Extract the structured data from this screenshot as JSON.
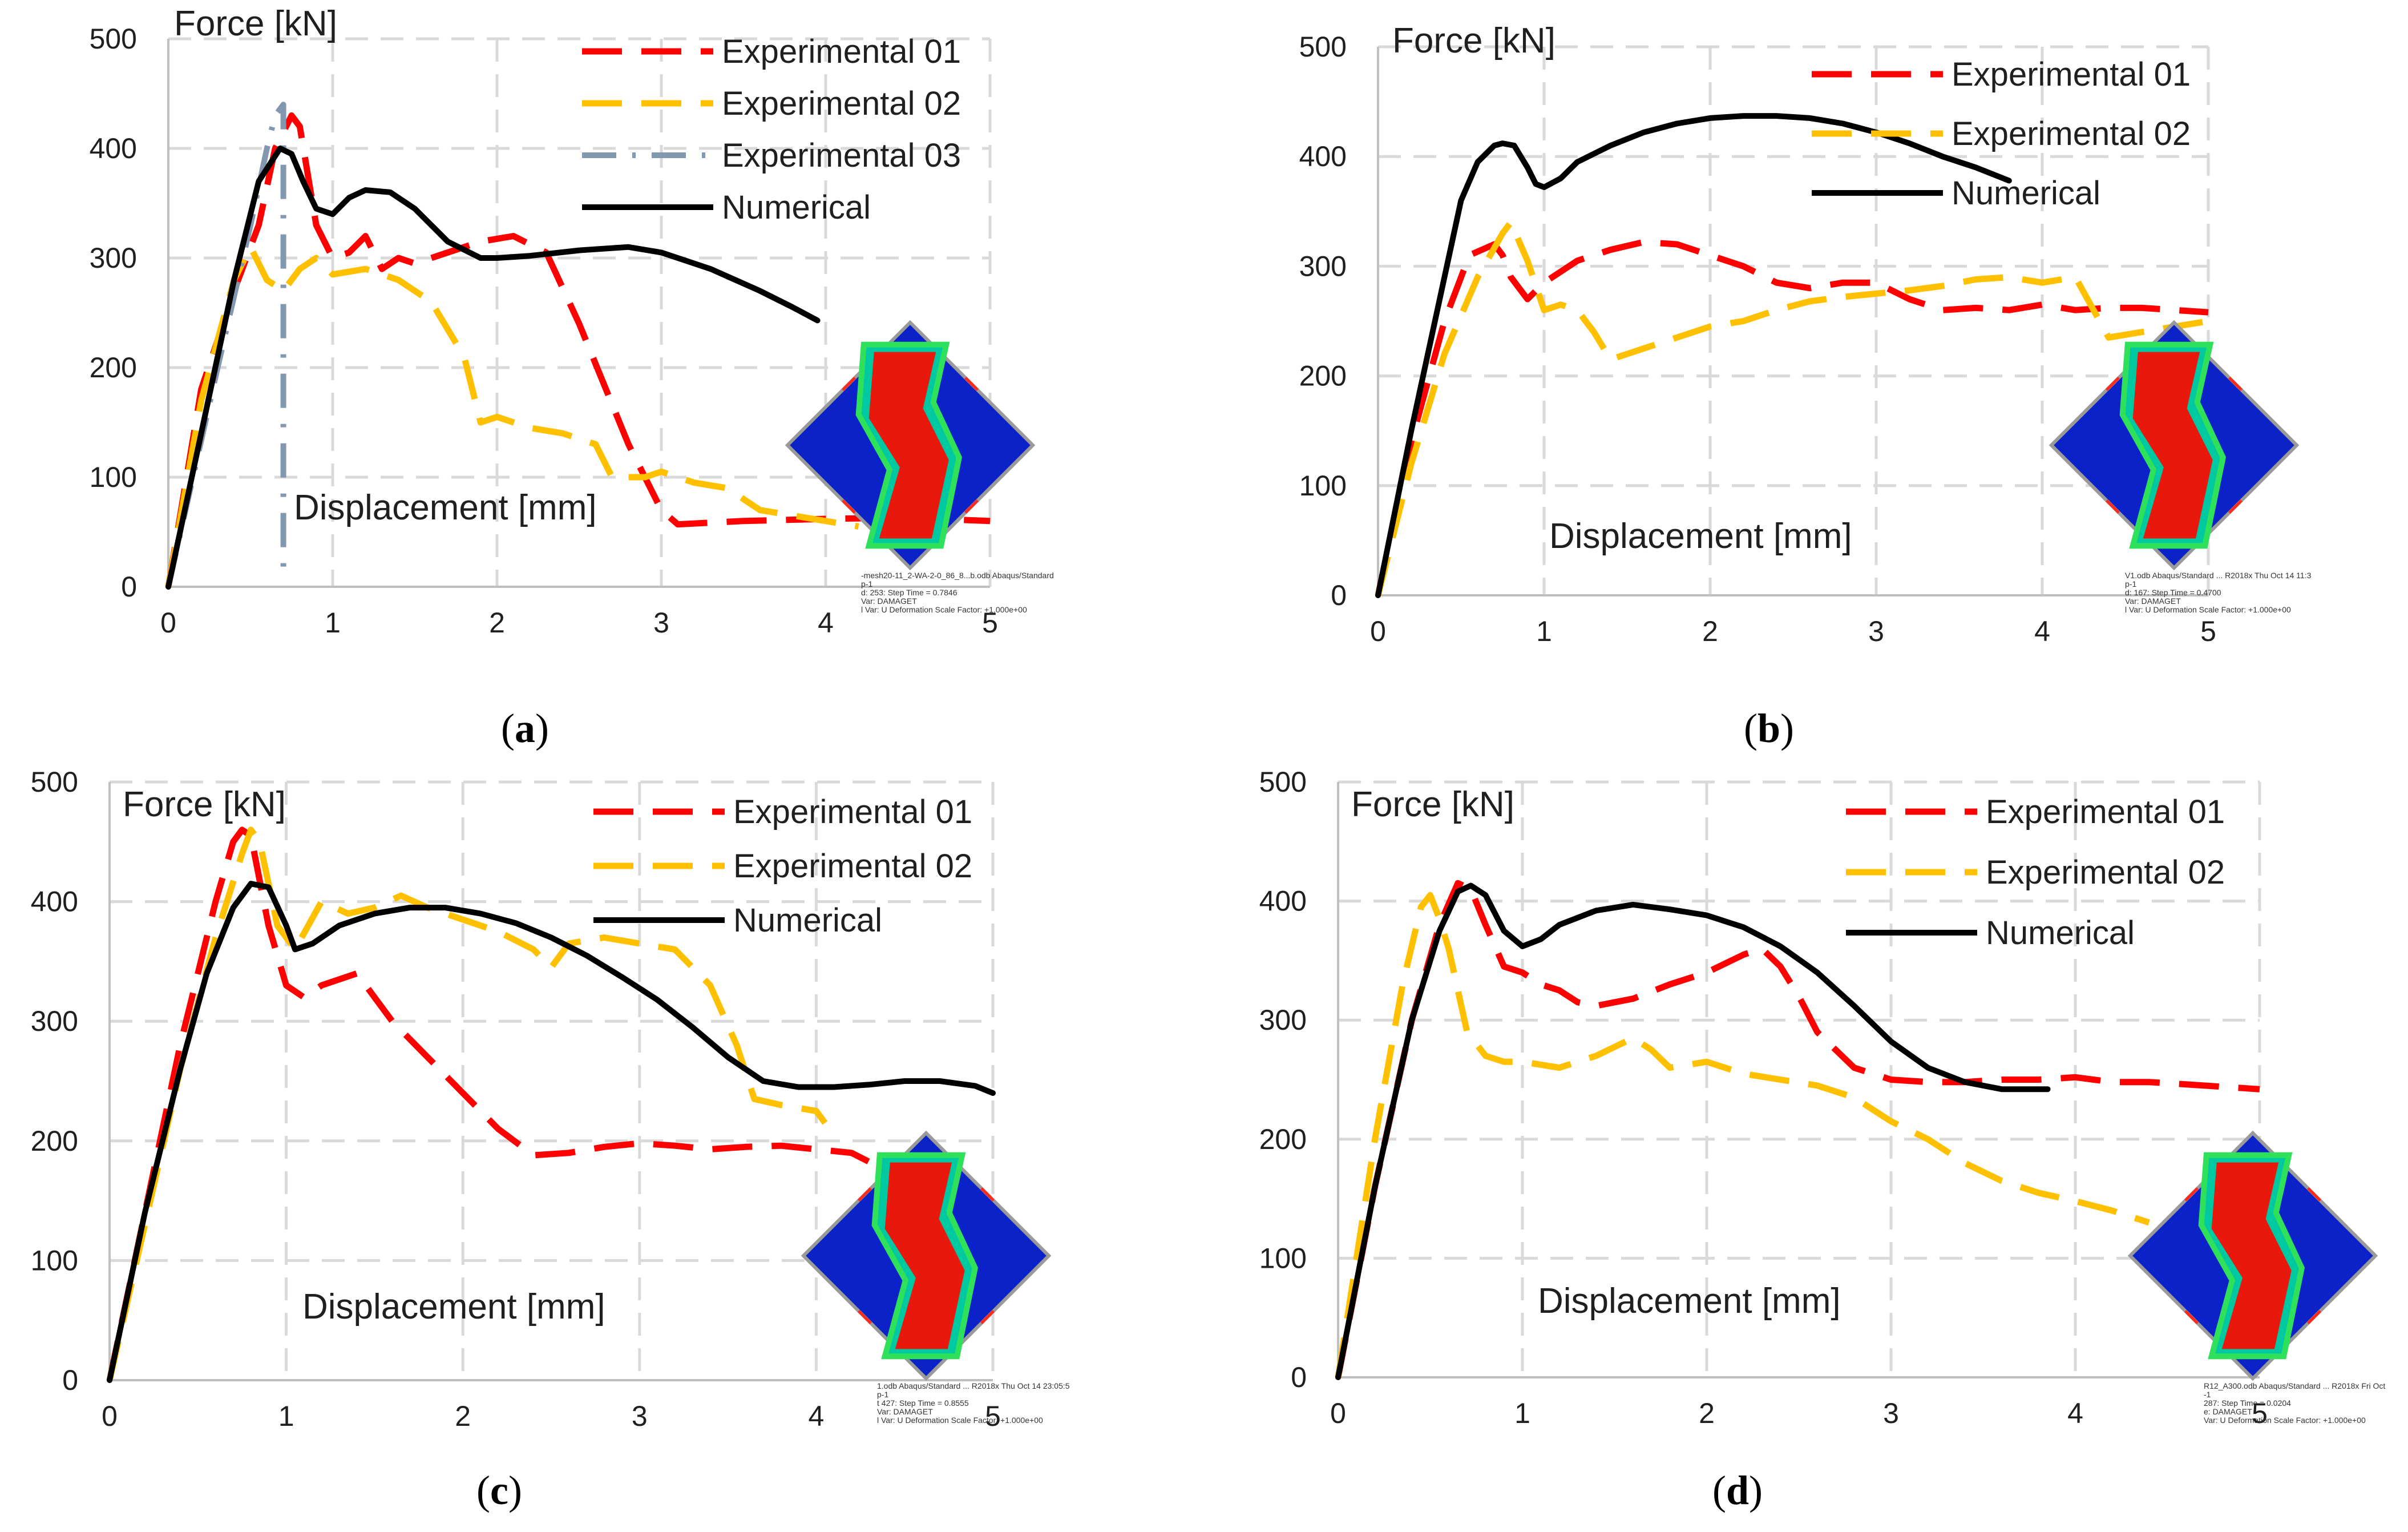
{
  "chart_data": [
    {
      "type": "line",
      "caption": "a",
      "xlabel": "Displacement [mm]",
      "ylabel": "Force [kN]",
      "xlim": [
        0,
        5
      ],
      "ylim": [
        0,
        500
      ],
      "xticks": [
        0,
        1,
        2,
        3,
        4,
        5
      ],
      "yticks": [
        0,
        100,
        200,
        300,
        400,
        500
      ],
      "grid": true,
      "legend_position": "top-right",
      "series": [
        {
          "name": "Experimental 01",
          "color": "#ff0000",
          "style": "dashed",
          "x": [
            0,
            0.2,
            0.4,
            0.55,
            0.65,
            0.75,
            0.8,
            0.9,
            1.0,
            1.1,
            1.2,
            1.3,
            1.4,
            1.5,
            1.7,
            1.9,
            2.1,
            2.3,
            2.5,
            2.8,
            3.0,
            3.1,
            3.5,
            4.0,
            4.5,
            5.0
          ],
          "y": [
            0,
            180,
            270,
            330,
            400,
            430,
            420,
            330,
            300,
            305,
            320,
            290,
            300,
            295,
            305,
            315,
            320,
            305,
            240,
            130,
            70,
            57,
            60,
            62,
            63,
            60
          ]
        },
        {
          "name": "Experimental 02",
          "color": "#ffc000",
          "style": "dashed",
          "x": [
            0,
            0.2,
            0.4,
            0.5,
            0.6,
            0.7,
            0.8,
            0.9,
            1.0,
            1.2,
            1.4,
            1.6,
            1.8,
            1.9,
            2.0,
            2.2,
            2.4,
            2.6,
            2.7,
            2.9,
            3.0,
            3.2,
            3.4,
            3.6,
            3.8,
            4.0,
            4.2
          ],
          "y": [
            0,
            170,
            280,
            310,
            280,
            270,
            290,
            300,
            285,
            290,
            280,
            260,
            210,
            150,
            155,
            145,
            140,
            130,
            100,
            100,
            105,
            95,
            90,
            70,
            65,
            60,
            55
          ]
        },
        {
          "name": "Experimental 03",
          "color": "#8497b0",
          "style": "dash-dot",
          "x": [
            0,
            0.3,
            0.5,
            0.6,
            0.65,
            0.7,
            0.7,
            0.7
          ],
          "y": [
            0,
            200,
            330,
            400,
            430,
            440,
            200,
            10
          ]
        },
        {
          "name": "Numerical",
          "color": "#000000",
          "style": "solid",
          "x": [
            0,
            0.2,
            0.4,
            0.55,
            0.68,
            0.75,
            0.82,
            0.9,
            1.0,
            1.1,
            1.2,
            1.35,
            1.5,
            1.7,
            1.9,
            2.0,
            2.2,
            2.5,
            2.8,
            3.0,
            3.3,
            3.6,
            3.8,
            3.95
          ],
          "y": [
            0,
            140,
            280,
            370,
            400,
            395,
            370,
            345,
            340,
            355,
            362,
            360,
            345,
            315,
            300,
            300,
            302,
            307,
            310,
            305,
            290,
            270,
            255,
            243
          ]
        }
      ]
    },
    {
      "type": "line",
      "caption": "b",
      "xlabel": "Displacement [mm]",
      "ylabel": "Force [kN]",
      "xlim": [
        0,
        5
      ],
      "ylim": [
        0,
        500
      ],
      "xticks": [
        0,
        1,
        2,
        3,
        4,
        5
      ],
      "yticks": [
        0,
        100,
        200,
        300,
        400,
        500
      ],
      "grid": true,
      "legend_position": "top-right",
      "series": [
        {
          "name": "Experimental 01",
          "color": "#ff0000",
          "style": "dashed",
          "x": [
            0,
            0.2,
            0.4,
            0.55,
            0.7,
            0.75,
            0.8,
            0.9,
            1.0,
            1.2,
            1.4,
            1.6,
            1.8,
            2.0,
            2.2,
            2.4,
            2.6,
            2.8,
            3.0,
            3.2,
            3.4,
            3.6,
            3.8,
            4.0,
            4.2,
            4.4,
            4.6,
            4.8,
            5.0
          ],
          "y": [
            0,
            140,
            250,
            310,
            320,
            310,
            290,
            270,
            285,
            305,
            315,
            322,
            320,
            310,
            300,
            285,
            280,
            285,
            285,
            270,
            260,
            262,
            260,
            265,
            260,
            262,
            262,
            260,
            258
          ]
        },
        {
          "name": "Experimental 02",
          "color": "#ffc000",
          "style": "dashed",
          "x": [
            0,
            0.2,
            0.4,
            0.6,
            0.75,
            0.8,
            0.9,
            1.0,
            1.1,
            1.2,
            1.3,
            1.4,
            1.6,
            1.8,
            2.0,
            2.2,
            2.4,
            2.6,
            2.8,
            3.0,
            3.2,
            3.4,
            3.6,
            3.8,
            4.0,
            4.2,
            4.4,
            4.6,
            4.8,
            5.0
          ],
          "y": [
            0,
            120,
            220,
            290,
            330,
            340,
            305,
            260,
            265,
            260,
            240,
            215,
            225,
            235,
            245,
            250,
            260,
            268,
            272,
            275,
            278,
            282,
            288,
            290,
            285,
            290,
            235,
            240,
            245,
            250
          ]
        },
        {
          "name": "Numerical",
          "color": "#000000",
          "style": "solid",
          "x": [
            0,
            0.2,
            0.4,
            0.5,
            0.6,
            0.7,
            0.75,
            0.82,
            0.9,
            0.95,
            1.0,
            1.1,
            1.2,
            1.4,
            1.6,
            1.8,
            2.0,
            2.2,
            2.4,
            2.6,
            2.8,
            3.0,
            3.2,
            3.4,
            3.6,
            3.8
          ],
          "y": [
            0,
            150,
            290,
            360,
            395,
            410,
            412,
            410,
            390,
            375,
            372,
            380,
            395,
            410,
            422,
            430,
            435,
            437,
            437,
            435,
            430,
            422,
            412,
            400,
            390,
            378
          ]
        }
      ]
    },
    {
      "type": "line",
      "caption": "c",
      "xlabel": "Displacement [mm]",
      "ylabel": "Force [kN]",
      "xlim": [
        0,
        5
      ],
      "ylim": [
        0,
        500
      ],
      "xticks": [
        0,
        1,
        2,
        3,
        4,
        5
      ],
      "yticks": [
        0,
        100,
        200,
        300,
        400,
        500
      ],
      "grid": true,
      "legend_position": "top-right",
      "series": [
        {
          "name": "Experimental 01",
          "color": "#ff0000",
          "style": "dashed",
          "x": [
            0,
            0.2,
            0.4,
            0.6,
            0.7,
            0.75,
            0.8,
            0.9,
            1.0,
            1.1,
            1.2,
            1.3,
            1.4,
            1.6,
            1.8,
            2.0,
            2.2,
            2.4,
            2.6,
            2.8,
            3.0,
            3.2,
            3.4,
            3.6,
            3.8,
            4.0,
            4.2,
            4.4,
            4.6,
            4.8
          ],
          "y": [
            0,
            140,
            280,
            400,
            450,
            460,
            455,
            380,
            330,
            320,
            330,
            335,
            340,
            300,
            270,
            240,
            210,
            188,
            190,
            195,
            198,
            196,
            193,
            195,
            196,
            193,
            190,
            175,
            155,
            135
          ]
        },
        {
          "name": "Experimental 02",
          "color": "#ffc000",
          "style": "dashed",
          "x": [
            0,
            0.2,
            0.4,
            0.6,
            0.75,
            0.8,
            0.85,
            0.95,
            1.05,
            1.2,
            1.35,
            1.5,
            1.65,
            1.8,
            2.0,
            2.2,
            2.4,
            2.5,
            2.6,
            2.8,
            3.0,
            3.2,
            3.4,
            3.55,
            3.65,
            3.8,
            4.0,
            4.05
          ],
          "y": [
            0,
            130,
            260,
            370,
            440,
            460,
            450,
            380,
            360,
            400,
            390,
            395,
            405,
            395,
            385,
            375,
            360,
            345,
            365,
            370,
            365,
            360,
            330,
            280,
            235,
            230,
            225,
            215
          ]
        },
        {
          "name": "Numerical",
          "color": "#000000",
          "style": "solid",
          "x": [
            0,
            0.2,
            0.4,
            0.55,
            0.7,
            0.8,
            0.9,
            1.0,
            1.05,
            1.15,
            1.3,
            1.5,
            1.7,
            1.9,
            2.1,
            2.3,
            2.5,
            2.7,
            2.9,
            3.1,
            3.3,
            3.5,
            3.7,
            3.9,
            4.1,
            4.3,
            4.5,
            4.7,
            4.9,
            5.0
          ],
          "y": [
            0,
            140,
            260,
            340,
            395,
            415,
            412,
            380,
            360,
            365,
            380,
            390,
            395,
            395,
            390,
            382,
            370,
            355,
            337,
            318,
            295,
            270,
            250,
            245,
            245,
            247,
            250,
            250,
            246,
            240
          ]
        }
      ]
    },
    {
      "type": "line",
      "caption": "d",
      "xlabel": "Displacement [mm]",
      "ylabel": "Force [kN]",
      "xlim": [
        0,
        5
      ],
      "ylim": [
        0,
        500
      ],
      "xticks": [
        0,
        1,
        2,
        3,
        4,
        5
      ],
      "yticks": [
        0,
        100,
        200,
        300,
        400,
        500
      ],
      "grid": true,
      "legend_position": "top-right",
      "series": [
        {
          "name": "Experimental 01",
          "color": "#ff0000",
          "style": "dashed",
          "x": [
            0,
            0.2,
            0.4,
            0.55,
            0.65,
            0.72,
            0.8,
            0.9,
            1.0,
            1.1,
            1.2,
            1.3,
            1.4,
            1.6,
            1.8,
            2.0,
            2.2,
            2.3,
            2.4,
            2.5,
            2.6,
            2.8,
            3.0,
            3.2,
            3.4,
            3.6,
            3.8,
            4.0,
            4.2,
            4.4,
            4.6,
            4.8,
            5.0
          ],
          "y": [
            0,
            160,
            300,
            380,
            415,
            410,
            380,
            345,
            340,
            330,
            325,
            315,
            312,
            318,
            330,
            340,
            355,
            360,
            345,
            320,
            290,
            260,
            250,
            248,
            248,
            250,
            250,
            252,
            248,
            248,
            246,
            244,
            242
          ]
        },
        {
          "name": "Experimental 02",
          "color": "#ffc000",
          "style": "dashed",
          "x": [
            0,
            0.2,
            0.35,
            0.45,
            0.5,
            0.55,
            0.6,
            0.7,
            0.8,
            0.9,
            1.0,
            1.2,
            1.4,
            1.6,
            1.7,
            1.8,
            2.0,
            2.2,
            2.4,
            2.6,
            2.8,
            3.0,
            3.2,
            3.4,
            3.6,
            3.8,
            4.0,
            4.2,
            4.4
          ],
          "y": [
            0,
            200,
            330,
            395,
            405,
            385,
            360,
            290,
            270,
            265,
            265,
            260,
            270,
            285,
            275,
            260,
            265,
            255,
            250,
            245,
            235,
            215,
            200,
            180,
            165,
            155,
            148,
            140,
            130
          ]
        },
        {
          "name": "Numerical",
          "color": "#000000",
          "style": "solid",
          "x": [
            0,
            0.2,
            0.4,
            0.55,
            0.65,
            0.72,
            0.8,
            0.9,
            1.0,
            1.1,
            1.2,
            1.4,
            1.6,
            1.8,
            2.0,
            2.2,
            2.4,
            2.6,
            2.8,
            3.0,
            3.2,
            3.4,
            3.6,
            3.7,
            3.85
          ],
          "y": [
            0,
            160,
            300,
            375,
            408,
            413,
            405,
            375,
            362,
            368,
            380,
            392,
            397,
            393,
            388,
            378,
            362,
            340,
            312,
            282,
            260,
            248,
            242,
            242,
            242
          ]
        }
      ]
    }
  ],
  "captions": [
    {
      "open": "(",
      "letter": "a",
      "close": ")"
    },
    {
      "open": "(",
      "letter": "b",
      "close": ")"
    },
    {
      "open": "(",
      "letter": "c",
      "close": ")"
    },
    {
      "open": "(",
      "letter": "d",
      "close": ")"
    }
  ],
  "inset_text": [
    [
      "-mesh20-11_2-WA-2-0_86_8...b.odb  Abaqus/Standard",
      "p-1",
      "d: 253: Step Time = 0.7846",
      "Var: DAMAGET",
      "l Var: U   Deformation Scale Factor: +1.000e+00"
    ],
    [
      "V1.odb   Abaqus/Standard ... R2018x  Thu Oct 14 11:3",
      "p-1",
      "d: 167: Step Time = 0.4700",
      "Var: DAMAGET",
      "l Var: U   Deformation Scale Factor: +1.000e+00"
    ],
    [
      "1.odb   Abaqus/Standard ... R2018x  Thu Oct 14 23:05:5",
      "p-1",
      "t 427: Step Time = 0.8555",
      "Var: DAMAGET",
      "l Var: U   Deformation Scale Factor: +1.000e+00"
    ],
    [
      "R12_A300.odb   Abaqus/Standard ... R2018x  Fri Oct",
      "-1",
      "287: Step Time = 0.0204",
      "e: DAMAGET",
      "Var: U   Deformation Scale Factor: +1.000e+00"
    ]
  ],
  "colors": {
    "exp01": "#ff0000",
    "exp02": "#ffc000",
    "exp03": "#8497b0",
    "numerical": "#000000",
    "grid": "#d9d9d9"
  }
}
